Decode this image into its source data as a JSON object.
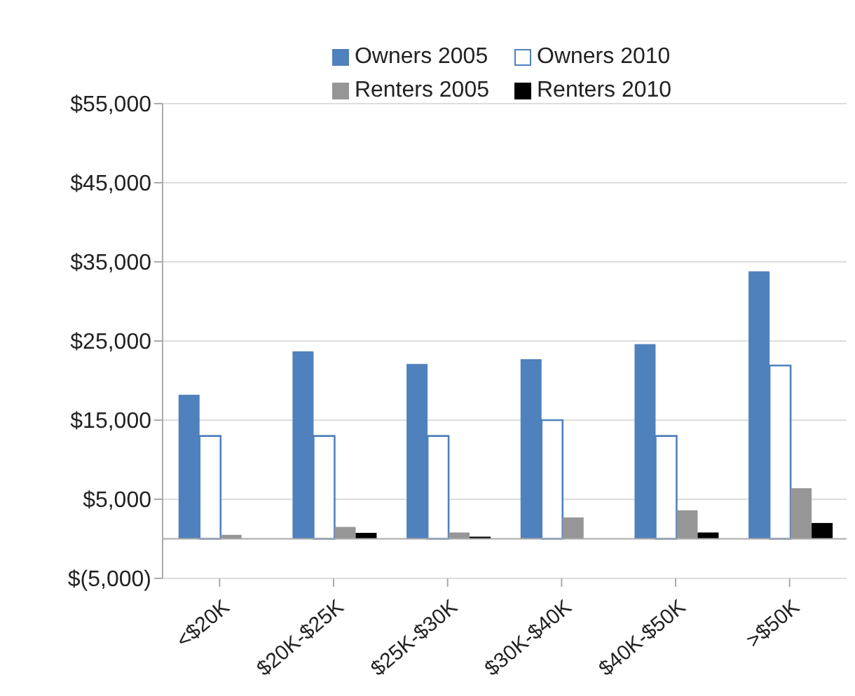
{
  "chart_data": {
    "type": "bar",
    "categories": [
      "<$20K",
      "$20K-$25K",
      "$25K-$30K",
      "$30K-$40K",
      "$40K-$50K",
      ">$50K"
    ],
    "series": [
      {
        "name": "Owners 2005",
        "color": "#4f81bd",
        "values": [
          18200,
          23700,
          22100,
          22700,
          24600,
          33800
        ]
      },
      {
        "name": "Owners 2010",
        "color": "#ffffff",
        "values": [
          13000,
          13000,
          13000,
          15000,
          13000,
          21900
        ]
      },
      {
        "name": "Renters 2005",
        "color": "#969696",
        "values": [
          500,
          1500,
          800,
          2700,
          3600,
          6400
        ]
      },
      {
        "name": "Renters 2010",
        "color": "#000000",
        "values": [
          null,
          750,
          270,
          null,
          800,
          2000
        ]
      }
    ],
    "ylim": [
      -5000,
      55000
    ],
    "yticks": [
      {
        "value": -5000,
        "label": "$(5,000)"
      },
      {
        "value": 5000,
        "label": "$5,000"
      },
      {
        "value": 15000,
        "label": "$15,000"
      },
      {
        "value": 25000,
        "label": "$25,000"
      },
      {
        "value": 35000,
        "label": "$35,000"
      },
      {
        "value": 45000,
        "label": "$45,000"
      },
      {
        "value": 55000,
        "label": "$55,000"
      }
    ],
    "grid": "y",
    "legend": "top"
  }
}
